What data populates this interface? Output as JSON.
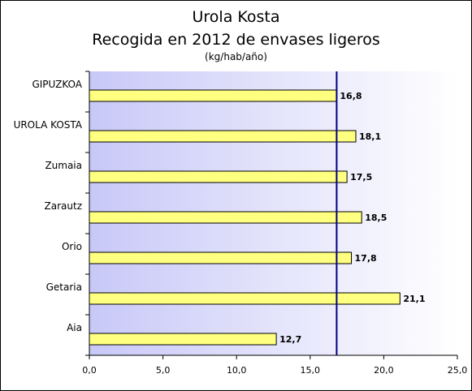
{
  "chart_data": {
    "type": "bar",
    "orientation": "horizontal",
    "title": "Urola Kosta",
    "subtitle": "Recogida en 2012 de envases ligeros",
    "unit": "(kg/hab/año)",
    "categories": [
      "GIPUZKOA",
      "UROLA KOSTA",
      "Zumaia",
      "Zarautz",
      "Orio",
      "Getaria",
      "Aia"
    ],
    "values": [
      16.8,
      18.1,
      17.5,
      18.5,
      17.8,
      21.1,
      12.7
    ],
    "data_labels": [
      "16,8",
      "18,1",
      "17,5",
      "18,5",
      "17,8",
      "21,1",
      "12,7"
    ],
    "x_ticks": [
      "0,0",
      "5,0",
      "10,0",
      "15,0",
      "20,0",
      "25,0"
    ],
    "x_tick_values": [
      0,
      5,
      10,
      15,
      20,
      25
    ],
    "xlim": [
      0,
      25
    ],
    "reference_line": 16.8,
    "bar_color": "#ffff80",
    "bar_border": "#000000",
    "reference_line_color": "#000080",
    "background_gradient": [
      "#c8c8f8",
      "#ffffff"
    ],
    "grid": false,
    "legend": "none"
  }
}
